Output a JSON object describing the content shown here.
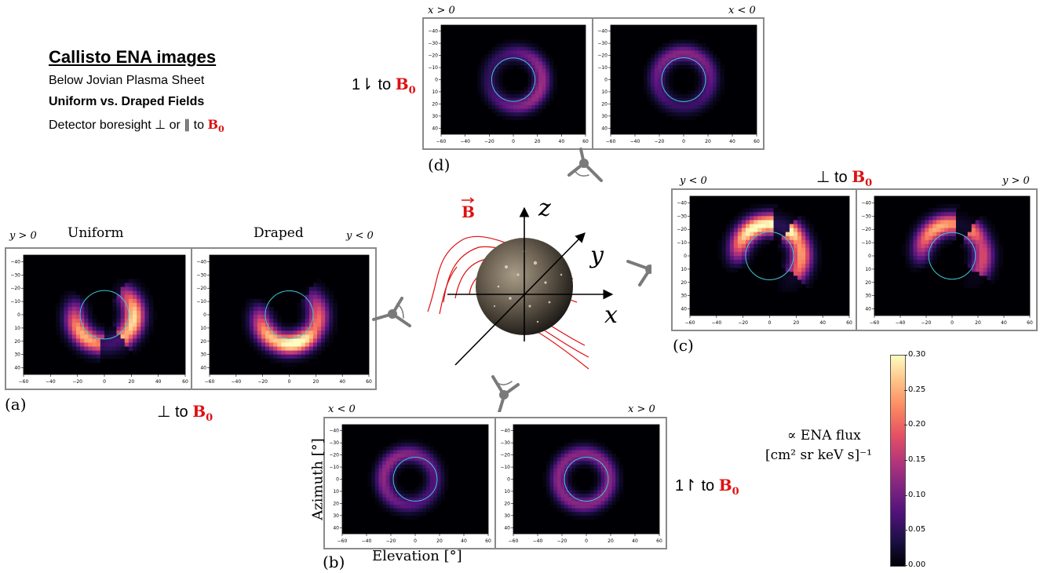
{
  "header": {
    "title": "Callisto ENA images",
    "line1": "Below Jovian Plasma Sheet",
    "line2": "Uniform vs. Draped Fields",
    "line3_prefix": "Detector boresight ⊥ or ∥ to"
  },
  "b0_symbol": "B",
  "b0_subscript": "0",
  "b_vector_label": "B",
  "panels": {
    "a": {
      "label": "(a)",
      "orientation_text": "⊥ to",
      "left_title": "Uniform",
      "right_title": "Draped",
      "left_tag": "y > 0",
      "right_tag": "y < 0"
    },
    "b": {
      "label": "(b)",
      "orientation_text": "1↾ to",
      "left_tag": "x < 0",
      "right_tag": "x > 0"
    },
    "c": {
      "label": "(c)",
      "orientation_text": "⊥ to",
      "left_tag": "y < 0",
      "right_tag": "y > 0"
    },
    "d": {
      "label": "(d)",
      "orientation_text": "1⇂ to",
      "left_tag": "x > 0",
      "right_tag": "x < 0"
    }
  },
  "axes": {
    "x": "x",
    "y": "y",
    "z": "z",
    "azimuth": "Azimuth [°]",
    "elevation": "Elevation [°]",
    "x_ticks": [
      "−60",
      "−40",
      "−20",
      "0",
      "20",
      "40",
      "60"
    ],
    "y_ticks": [
      "−40",
      "−30",
      "−20",
      "−10",
      "0",
      "10",
      "20",
      "30",
      "40"
    ]
  },
  "colorbar": {
    "label_line1": "∝ ENA flux",
    "label_line2": "[cm² sr keV s]⁻¹",
    "ticks": [
      "0.30",
      "0.25",
      "0.20",
      "0.15",
      "0.10",
      "0.05",
      "0.00"
    ],
    "range": [
      0,
      0.3
    ],
    "colormap": "magma"
  },
  "colors": {
    "b_red": "#dd1111",
    "frame_gray": "#8a8a8a",
    "circle_cyan": "#3ec9d6"
  }
}
